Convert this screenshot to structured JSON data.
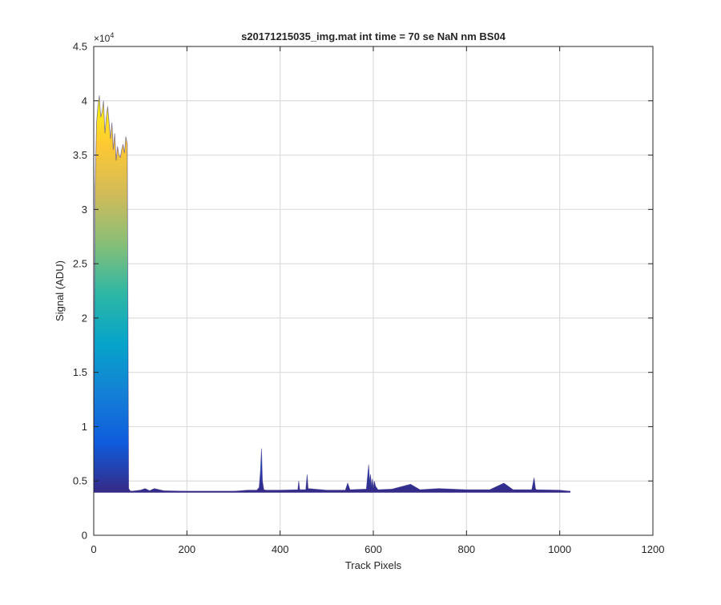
{
  "chart_data": {
    "type": "area",
    "title": "s20171215035_img.mat int time = 70 se  NaN nm BS04",
    "xlabel": "Track Pixels",
    "ylabel": "Signal (ADU)",
    "xlim": [
      0,
      1200
    ],
    "ylim": [
      0,
      45000
    ],
    "x_ticks": [
      0,
      200,
      400,
      600,
      800,
      1000,
      1200
    ],
    "x_tick_labels": [
      "0",
      "200",
      "400",
      "600",
      "800",
      "1000",
      "1200"
    ],
    "y_ticks": [
      0,
      5000,
      10000,
      15000,
      20000,
      25000,
      30000,
      35000,
      40000,
      45000
    ],
    "y_tick_labels": [
      "0",
      "0.5",
      "1",
      "1.5",
      "2",
      "2.5",
      "3",
      "3.5",
      "4",
      "4.5"
    ],
    "y_exponent": "×10",
    "y_exponent_power": "4",
    "grid": true,
    "colormap": "parula (value-mapped fill)",
    "colormap_stops": [
      "#352a87",
      "#0f5cdd",
      "#1481d6",
      "#06a4ca",
      "#2eb7a4",
      "#87bf77",
      "#d1bb59",
      "#fec832",
      "#f9fb0e"
    ],
    "series": [
      {
        "x": [
          0,
          3,
          6,
          9,
          12,
          15,
          18,
          21,
          24,
          27,
          30,
          33,
          36,
          39,
          42,
          45,
          48,
          51,
          54,
          57,
          60,
          63,
          66,
          69,
          72,
          75,
          78,
          80,
          100,
          110,
          120,
          130,
          150,
          200,
          250,
          300,
          330,
          350,
          355,
          358,
          360,
          362,
          365,
          370,
          400,
          438,
          440,
          442,
          455,
          458,
          460,
          500,
          540,
          545,
          550,
          585,
          590,
          592,
          594,
          596,
          598,
          600,
          602,
          605,
          610,
          640,
          680,
          700,
          740,
          800,
          850,
          880,
          900,
          940,
          945,
          948,
          950,
          1000,
          1023
        ],
        "y": [
          4000,
          32000,
          38000,
          39500,
          40500,
          38500,
          39000,
          40000,
          37000,
          38500,
          39500,
          38000,
          36500,
          38000,
          35500,
          37000,
          34500,
          35800,
          35000,
          34800,
          35500,
          36000,
          35200,
          36700,
          36000,
          4300,
          4100,
          4050,
          4150,
          4300,
          4100,
          4300,
          4100,
          4050,
          4050,
          4050,
          4150,
          4150,
          4400,
          6000,
          8000,
          5000,
          4200,
          4150,
          4150,
          4200,
          5000,
          4200,
          4200,
          5600,
          4300,
          4150,
          4150,
          4800,
          4200,
          4250,
          6500,
          5000,
          5600,
          4500,
          5200,
          4300,
          5000,
          4500,
          4200,
          4250,
          4700,
          4200,
          4300,
          4200,
          4200,
          4800,
          4200,
          4200,
          5300,
          4300,
          4200,
          4150,
          4050
        ]
      }
    ]
  }
}
